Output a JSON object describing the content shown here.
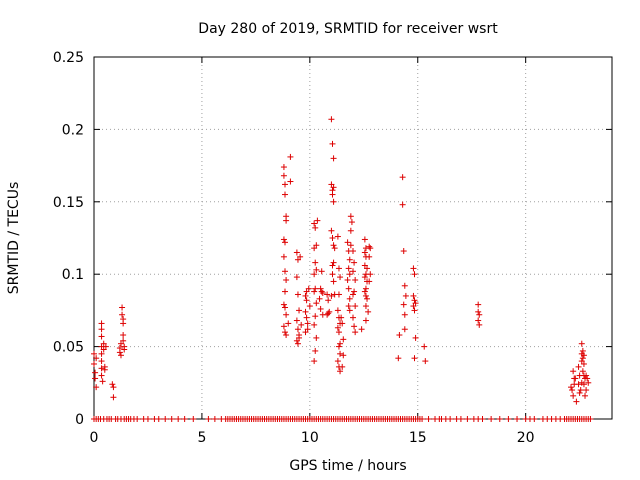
{
  "chart_data": {
    "type": "scatter",
    "title": "Day 280 of 2019, SRMTID for receiver wsrt",
    "xlabel": "GPS time / hours",
    "ylabel": "SRMTID / TECUs",
    "xlim": [
      0,
      24
    ],
    "ylim": [
      0,
      0.25
    ],
    "xticks": [
      0,
      5,
      10,
      15,
      20
    ],
    "xtick_labels": [
      "0",
      "5",
      "10",
      "15",
      "20"
    ],
    "yticks": [
      0,
      0.05,
      0.1,
      0.15,
      0.2,
      0.25
    ],
    "ytick_labels": [
      "0",
      "0.05",
      "0.1",
      "0.15",
      "0.2",
      "0.25"
    ],
    "grid": true,
    "marker": "+",
    "color": "#dd0000",
    "series": [
      {
        "points": [
          [
            0.0,
            0.045
          ],
          [
            0.0,
            0.038
          ],
          [
            0.05,
            0.032
          ],
          [
            0.05,
            0.028
          ],
          [
            0.1,
            0.022
          ],
          [
            0.1,
            0.042
          ],
          [
            0.35,
            0.066
          ],
          [
            0.35,
            0.062
          ],
          [
            0.35,
            0.057
          ],
          [
            0.35,
            0.05
          ],
          [
            0.35,
            0.045
          ],
          [
            0.35,
            0.04
          ],
          [
            0.35,
            0.035
          ],
          [
            0.35,
            0.03
          ],
          [
            0.4,
            0.026
          ],
          [
            0.45,
            0.052
          ],
          [
            0.45,
            0.048
          ],
          [
            0.5,
            0.036
          ],
          [
            0.5,
            0.034
          ],
          [
            0.55,
            0.05
          ],
          [
            0.85,
            0.024
          ],
          [
            0.9,
            0.022
          ],
          [
            0.9,
            0.015
          ],
          [
            1.2,
            0.049
          ],
          [
            1.2,
            0.046
          ],
          [
            1.25,
            0.044
          ],
          [
            1.25,
            0.052
          ],
          [
            1.3,
            0.077
          ],
          [
            1.3,
            0.072
          ],
          [
            1.35,
            0.069
          ],
          [
            1.35,
            0.066
          ],
          [
            1.35,
            0.058
          ],
          [
            1.35,
            0.054
          ],
          [
            1.4,
            0.048
          ],
          [
            1.4,
            0.05
          ],
          [
            8.8,
            0.174
          ],
          [
            8.8,
            0.168
          ],
          [
            8.85,
            0.162
          ],
          [
            8.85,
            0.155
          ],
          [
            8.9,
            0.14
          ],
          [
            8.9,
            0.137
          ],
          [
            8.8,
            0.124
          ],
          [
            8.85,
            0.122
          ],
          [
            8.8,
            0.112
          ],
          [
            8.85,
            0.102
          ],
          [
            8.9,
            0.096
          ],
          [
            8.85,
            0.088
          ],
          [
            8.8,
            0.079
          ],
          [
            8.85,
            0.077
          ],
          [
            8.9,
            0.072
          ],
          [
            8.8,
            0.064
          ],
          [
            8.85,
            0.06
          ],
          [
            8.9,
            0.058
          ],
          [
            9.0,
            0.066
          ],
          [
            9.1,
            0.181
          ],
          [
            9.1,
            0.164
          ],
          [
            9.4,
            0.115
          ],
          [
            9.45,
            0.11
          ],
          [
            9.4,
            0.098
          ],
          [
            9.45,
            0.086
          ],
          [
            9.5,
            0.075
          ],
          [
            9.4,
            0.068
          ],
          [
            9.45,
            0.062
          ],
          [
            9.5,
            0.056
          ],
          [
            9.45,
            0.052
          ],
          [
            9.5,
            0.058
          ],
          [
            9.4,
            0.054
          ],
          [
            9.55,
            0.112
          ],
          [
            9.6,
            0.065
          ],
          [
            9.8,
            0.085
          ],
          [
            9.85,
            0.082
          ],
          [
            9.8,
            0.074
          ],
          [
            9.85,
            0.07
          ],
          [
            9.9,
            0.066
          ],
          [
            9.8,
            0.06
          ],
          [
            9.95,
            0.09
          ],
          [
            9.85,
            0.088
          ],
          [
            10.0,
            0.078
          ],
          [
            9.9,
            0.062
          ],
          [
            10.2,
            0.135
          ],
          [
            10.25,
            0.132
          ],
          [
            10.3,
            0.12
          ],
          [
            10.2,
            0.118
          ],
          [
            10.25,
            0.108
          ],
          [
            10.2,
            0.1
          ],
          [
            10.3,
            0.103
          ],
          [
            10.25,
            0.09
          ],
          [
            10.2,
            0.088
          ],
          [
            10.3,
            0.08
          ],
          [
            10.25,
            0.071
          ],
          [
            10.2,
            0.065
          ],
          [
            10.3,
            0.056
          ],
          [
            10.25,
            0.047
          ],
          [
            10.2,
            0.04
          ],
          [
            10.35,
            0.137
          ],
          [
            10.45,
            0.083
          ],
          [
            10.5,
            0.076
          ],
          [
            10.5,
            0.09
          ],
          [
            10.55,
            0.088
          ],
          [
            10.6,
            0.087
          ],
          [
            10.6,
            0.072
          ],
          [
            10.55,
            0.102
          ],
          [
            10.8,
            0.086
          ],
          [
            10.85,
            0.082
          ],
          [
            10.8,
            0.072
          ],
          [
            10.85,
            0.073
          ],
          [
            10.9,
            0.074
          ],
          [
            11.0,
            0.207
          ],
          [
            11.05,
            0.19
          ],
          [
            11.1,
            0.18
          ],
          [
            11.0,
            0.162
          ],
          [
            11.05,
            0.158
          ],
          [
            11.1,
            0.16
          ],
          [
            11.05,
            0.155
          ],
          [
            11.1,
            0.15
          ],
          [
            11.0,
            0.13
          ],
          [
            11.05,
            0.125
          ],
          [
            11.1,
            0.12
          ],
          [
            11.15,
            0.118
          ],
          [
            11.1,
            0.108
          ],
          [
            11.05,
            0.106
          ],
          [
            11.1,
            0.095
          ],
          [
            11.15,
            0.086
          ],
          [
            11.0,
            0.085
          ],
          [
            11.05,
            0.1
          ],
          [
            11.3,
            0.126
          ],
          [
            11.35,
            0.104
          ],
          [
            11.4,
            0.098
          ],
          [
            11.35,
            0.086
          ],
          [
            11.3,
            0.075
          ],
          [
            11.35,
            0.07
          ],
          [
            11.4,
            0.066
          ],
          [
            11.3,
            0.063
          ],
          [
            11.35,
            0.06
          ],
          [
            11.4,
            0.052
          ],
          [
            11.35,
            0.05
          ],
          [
            11.4,
            0.045
          ],
          [
            11.3,
            0.04
          ],
          [
            11.35,
            0.036
          ],
          [
            11.4,
            0.033
          ],
          [
            11.5,
            0.036
          ],
          [
            11.5,
            0.066
          ],
          [
            11.45,
            0.07
          ],
          [
            11.55,
            0.055
          ],
          [
            11.55,
            0.044
          ],
          [
            11.75,
            0.122
          ],
          [
            11.8,
            0.116
          ],
          [
            11.85,
            0.11
          ],
          [
            11.8,
            0.104
          ],
          [
            11.85,
            0.1
          ],
          [
            11.75,
            0.096
          ],
          [
            11.8,
            0.09
          ],
          [
            11.85,
            0.083
          ],
          [
            11.8,
            0.078
          ],
          [
            11.85,
            0.075
          ],
          [
            11.9,
            0.13
          ],
          [
            11.9,
            0.14
          ],
          [
            11.95,
            0.136
          ],
          [
            11.9,
            0.12
          ],
          [
            12.0,
            0.116
          ],
          [
            12.05,
            0.108
          ],
          [
            12.0,
            0.102
          ],
          [
            12.1,
            0.096
          ],
          [
            12.05,
            0.088
          ],
          [
            12.0,
            0.086
          ],
          [
            12.1,
            0.078
          ],
          [
            12.0,
            0.07
          ],
          [
            12.05,
            0.064
          ],
          [
            12.1,
            0.06
          ],
          [
            12.4,
            0.062
          ],
          [
            12.55,
            0.124
          ],
          [
            12.6,
            0.118
          ],
          [
            12.55,
            0.115
          ],
          [
            12.6,
            0.112
          ],
          [
            12.55,
            0.106
          ],
          [
            12.65,
            0.104
          ],
          [
            12.6,
            0.1
          ],
          [
            12.55,
            0.098
          ],
          [
            12.65,
            0.095
          ],
          [
            12.6,
            0.09
          ],
          [
            12.55,
            0.088
          ],
          [
            12.6,
            0.085
          ],
          [
            12.65,
            0.083
          ],
          [
            12.6,
            0.078
          ],
          [
            12.7,
            0.074
          ],
          [
            12.6,
            0.068
          ],
          [
            12.75,
            0.119
          ],
          [
            12.8,
            0.118
          ],
          [
            12.75,
            0.112
          ],
          [
            12.8,
            0.1
          ],
          [
            12.75,
            0.095
          ],
          [
            14.1,
            0.042
          ],
          [
            14.15,
            0.058
          ],
          [
            14.3,
            0.167
          ],
          [
            14.3,
            0.148
          ],
          [
            14.35,
            0.116
          ],
          [
            14.4,
            0.092
          ],
          [
            14.45,
            0.085
          ],
          [
            14.35,
            0.079
          ],
          [
            14.4,
            0.062
          ],
          [
            14.4,
            0.072
          ],
          [
            14.8,
            0.104
          ],
          [
            14.85,
            0.1
          ],
          [
            14.8,
            0.085
          ],
          [
            14.85,
            0.082
          ],
          [
            14.9,
            0.08
          ],
          [
            14.8,
            0.078
          ],
          [
            14.85,
            0.075
          ],
          [
            14.9,
            0.056
          ],
          [
            14.85,
            0.042
          ],
          [
            15.3,
            0.05
          ],
          [
            15.35,
            0.04
          ],
          [
            17.8,
            0.079
          ],
          [
            17.8,
            0.074
          ],
          [
            17.85,
            0.072
          ],
          [
            17.8,
            0.068
          ],
          [
            17.85,
            0.065
          ],
          [
            22.1,
            0.022
          ],
          [
            22.15,
            0.02
          ],
          [
            22.2,
            0.016
          ],
          [
            22.25,
            0.028
          ],
          [
            22.2,
            0.033
          ],
          [
            22.3,
            0.028
          ],
          [
            22.25,
            0.024
          ],
          [
            22.35,
            0.012
          ],
          [
            22.45,
            0.036
          ],
          [
            22.5,
            0.03
          ],
          [
            22.45,
            0.024
          ],
          [
            22.55,
            0.02
          ],
          [
            22.5,
            0.018
          ],
          [
            22.6,
            0.025
          ],
          [
            22.6,
            0.052
          ],
          [
            22.65,
            0.047
          ],
          [
            22.6,
            0.045
          ],
          [
            22.7,
            0.044
          ],
          [
            22.65,
            0.042
          ],
          [
            22.6,
            0.04
          ],
          [
            22.7,
            0.038
          ],
          [
            22.65,
            0.033
          ],
          [
            22.7,
            0.03
          ],
          [
            22.75,
            0.028
          ],
          [
            22.7,
            0.024
          ],
          [
            22.8,
            0.02
          ],
          [
            22.75,
            0.016
          ],
          [
            22.8,
            0.03
          ],
          [
            22.85,
            0.028
          ],
          [
            22.9,
            0.025
          ]
        ],
        "zero_x": [
          0.0,
          0.1,
          0.2,
          0.3,
          0.45,
          0.6,
          0.7,
          0.8,
          1.0,
          1.1,
          1.25,
          1.4,
          1.5,
          1.6,
          1.7,
          1.85,
          2.0,
          2.3,
          2.5,
          2.8,
          3.0,
          3.3,
          3.6,
          3.9,
          4.2,
          4.6,
          5.3,
          5.6,
          5.9,
          6.1,
          6.2,
          6.3,
          6.4,
          6.5,
          6.6,
          6.7,
          6.8,
          6.9,
          7.0,
          7.1,
          7.2,
          7.3,
          7.4,
          7.5,
          7.6,
          7.7,
          7.8,
          7.9,
          8.0,
          8.1,
          8.2,
          8.3,
          8.4,
          8.5,
          8.6,
          8.7,
          8.8,
          8.9,
          9.0,
          9.1,
          9.2,
          9.3,
          9.4,
          9.5,
          9.6,
          9.7,
          9.8,
          9.9,
          10.0,
          10.1,
          10.2,
          10.3,
          10.4,
          10.5,
          10.6,
          10.7,
          10.8,
          10.9,
          11.0,
          11.1,
          11.2,
          11.3,
          11.4,
          11.5,
          11.6,
          11.7,
          11.8,
          11.9,
          12.0,
          12.1,
          12.2,
          12.3,
          12.4,
          12.5,
          12.6,
          12.7,
          12.8,
          12.9,
          13.0,
          13.1,
          13.2,
          13.3,
          13.4,
          13.5,
          13.6,
          13.7,
          13.8,
          13.9,
          14.0,
          14.1,
          14.2,
          14.3,
          14.4,
          14.5,
          14.6,
          14.7,
          14.8,
          14.9,
          15.0,
          15.1,
          15.2,
          15.5,
          15.8,
          16.0,
          16.1,
          16.3,
          16.5,
          16.8,
          17.0,
          17.3,
          17.6,
          17.8,
          18.0,
          18.4,
          18.8,
          19.2,
          19.6,
          20.0,
          20.2,
          20.4,
          20.8,
          21.0,
          21.2,
          21.4,
          21.6,
          21.8,
          21.9,
          22.0,
          22.1,
          22.2,
          22.3,
          22.4,
          22.5,
          22.6,
          22.7,
          22.8,
          22.9,
          23.0
        ]
      }
    ]
  }
}
